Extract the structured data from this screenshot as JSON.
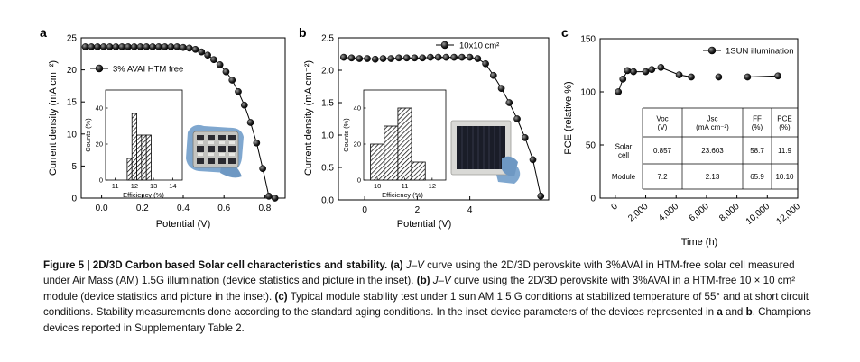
{
  "figure": {
    "panel_labels": [
      "a",
      "b",
      "c"
    ]
  },
  "chart_data": [
    {
      "type": "line",
      "panel": "a",
      "title": "",
      "xlabel": "Potential (V)",
      "ylabel": "Current density (mA cm⁻²)",
      "xlim": [
        -0.1,
        0.9
      ],
      "ylim": [
        0,
        25
      ],
      "xticks": [
        "0.0",
        "0.2",
        "0.4",
        "0.6",
        "0.8"
      ],
      "yticks": [
        "0",
        "5",
        "10",
        "15",
        "20",
        "25"
      ],
      "series": [
        {
          "name": "3% AVAI HTM free",
          "x": [
            -0.08,
            -0.05,
            -0.02,
            0.01,
            0.04,
            0.07,
            0.1,
            0.13,
            0.16,
            0.19,
            0.22,
            0.25,
            0.28,
            0.31,
            0.34,
            0.37,
            0.4,
            0.43,
            0.46,
            0.49,
            0.52,
            0.55,
            0.58,
            0.61,
            0.64,
            0.67,
            0.7,
            0.73,
            0.76,
            0.79,
            0.82,
            0.85
          ],
          "y": [
            23.6,
            23.6,
            23.6,
            23.6,
            23.6,
            23.6,
            23.6,
            23.6,
            23.6,
            23.6,
            23.6,
            23.6,
            23.6,
            23.6,
            23.6,
            23.6,
            23.5,
            23.4,
            23.2,
            22.8,
            22.3,
            21.6,
            20.8,
            19.7,
            18.4,
            16.6,
            14.5,
            11.8,
            8.6,
            4.6,
            0.3,
            -0.1
          ]
        }
      ],
      "inset": {
        "type": "histogram",
        "xlabel": "Efficiency (%)",
        "ylabel": "Counts (%)",
        "xticks": [
          "11",
          "12",
          "13",
          "14"
        ],
        "yticks": [
          "0",
          "20",
          "40"
        ],
        "bins": [
          11.75,
          12.0,
          12.25,
          12.5,
          12.75
        ],
        "values": [
          12,
          37,
          25,
          25,
          25
        ]
      }
    },
    {
      "type": "line",
      "panel": "b",
      "title": "",
      "xlabel": "Potential (V)",
      "ylabel": "Current density (mA cm⁻²)",
      "xlim": [
        -1,
        7
      ],
      "ylim": [
        0,
        2.5
      ],
      "xticks": [
        "0",
        "2",
        "4"
      ],
      "yticks": [
        "0.0",
        "0.5",
        "1.0",
        "1.5",
        "2.0",
        "2.5"
      ],
      "series": [
        {
          "name": "10x10 cm²",
          "x": [
            -0.8,
            -0.5,
            -0.2,
            0.1,
            0.4,
            0.7,
            1.0,
            1.3,
            1.6,
            1.9,
            2.2,
            2.5,
            2.8,
            3.1,
            3.4,
            3.7,
            4.0,
            4.3,
            4.6,
            4.9,
            5.2,
            5.5,
            5.8,
            6.1,
            6.4,
            6.7
          ],
          "y": [
            2.2,
            2.19,
            2.18,
            2.18,
            2.17,
            2.18,
            2.18,
            2.19,
            2.19,
            2.19,
            2.19,
            2.2,
            2.2,
            2.2,
            2.2,
            2.2,
            2.2,
            2.18,
            2.1,
            1.92,
            1.72,
            1.5,
            1.25,
            0.96,
            0.62,
            0.06
          ]
        }
      ],
      "inset": {
        "type": "histogram",
        "xlabel": "Efficiency (%)",
        "ylabel": "Counts (%)",
        "xticks": [
          "10",
          "11",
          "12"
        ],
        "yticks": [
          "0",
          "20",
          "40"
        ],
        "bins": [
          10.0,
          10.5,
          11.0,
          11.5
        ],
        "values": [
          20,
          30,
          40,
          10
        ]
      }
    },
    {
      "type": "line",
      "panel": "c",
      "title": "",
      "xlabel": "Time (h)",
      "ylabel": "PCE (relative %)",
      "xlim": [
        -1000,
        12000
      ],
      "ylim": [
        0,
        150
      ],
      "xticks": [
        "0",
        "2,000",
        "4,000",
        "6,000",
        "8,000",
        "10,000",
        "12,000"
      ],
      "yticks": [
        "0",
        "50",
        "100",
        "150"
      ],
      "series": [
        {
          "name": "1SUN illumination",
          "x": [
            200,
            500,
            800,
            1200,
            2000,
            2400,
            3000,
            4200,
            5000,
            6800,
            8700,
            10700
          ],
          "y": [
            100,
            112,
            120,
            119,
            119,
            121,
            123,
            116,
            114,
            114,
            114,
            115
          ]
        }
      ],
      "inset_table": {
        "headers": [
          "",
          "Voc\n(V)",
          "Jsc\n(mA cm⁻²)",
          "FF\n(%)",
          "PCE\n(%)"
        ],
        "rows": [
          [
            "Solar\ncell",
            "0.857",
            "23.603",
            "58.7",
            "11.9"
          ],
          [
            "Module",
            "7.2",
            "2.13",
            "65.9",
            "10.10"
          ]
        ]
      }
    }
  ],
  "caption": {
    "figure_label": "Figure 5 | 2D/3D Carbon based Solar cell characteristics and stability.",
    "part_a_label": "(a)",
    "part_a_italic": "J–V",
    "part_a_text": "curve using the 2D/3D perovskite with 3%AVAI in HTM-free solar cell measured under Air Mass (AM) 1.5G illumination (device statistics and picture in the inset).",
    "part_b_label": "(b)",
    "part_b_italic": "J–V",
    "part_b_text": "curve using the 2D/3D perovskite with 3%AVAI in a HTM-free 10 × 10 cm² module (device statistics and picture in the inset).",
    "part_c_label": "(c)",
    "part_c_text": "Typical module stability test under 1 sun AM 1.5 G conditions at stabilized temperature of 55° and at short circuit conditions. Stability measurements done according to the standard aging conditions. In the inset device parameters of the devices represented in",
    "ref_a": "a",
    "and_text": "and",
    "ref_b": "b",
    "tail_text": ". Champions devices reported in Supplementary Table 2."
  }
}
